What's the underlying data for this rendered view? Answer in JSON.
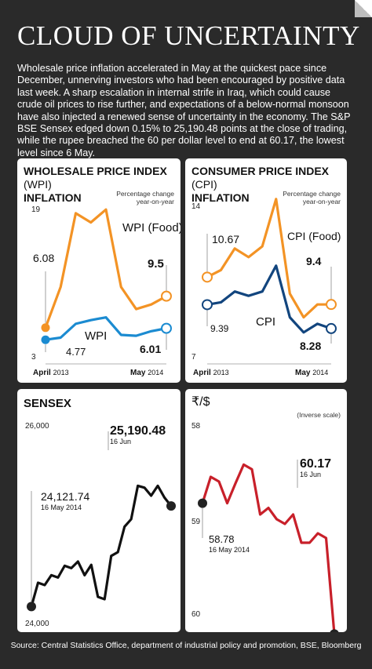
{
  "page": {
    "title": "CLOUD OF UNCERTAINTY",
    "intro": "Wholesale price inflation accelerated in May at the quickest pace since December, unnerving investors who had been encouraged by positive data last week. A sharp escalation in internal strife in Iraq, which could cause crude oil prices to rise further, and expectations of a below-normal monsoon have also injected a renewed sense of uncertainty in the economy. The S&P BSE Sensex edged down 0.15% to 25,190.48 points at the close of trading, while the rupee breached the 60 per dollar level to end at 60.17, the lowest level since 6 May.",
    "source": "Source: Central Statistics Office, department of industrial policy and promotion, BSE, Bloomberg"
  },
  "colors": {
    "background": "#2a2a2a",
    "panel": "#ffffff",
    "orange": "#f39325",
    "blue": "#1b8bd1",
    "navy": "#12457e",
    "black": "#111111",
    "red": "#c8202a"
  },
  "chart_data": [
    {
      "id": "wpi",
      "type": "line",
      "title_bold": "WHOLESALE PRICE INDEX",
      "title_thin": "(WPI)",
      "title_line2": "INFLATION",
      "subtitle": "Percentage change year-on-year",
      "ylim": [
        3,
        19
      ],
      "yticks": [
        "19",
        "3"
      ],
      "x_start_month": "April",
      "x_start_year": "2013",
      "x_end_month": "May",
      "x_end_year": "2014",
      "series": [
        {
          "name": "WPI (Food)",
          "color": "#f39325",
          "start_label": "6.08",
          "end_label": "9.5",
          "values": [
            6.08,
            10.5,
            18.5,
            17.5,
            18.9,
            10.5,
            8.1,
            8.6,
            9.5
          ]
        },
        {
          "name": "WPI",
          "color": "#1b8bd1",
          "start_label": "4.77",
          "end_label": "6.01",
          "values": [
            4.77,
            5.0,
            6.5,
            6.9,
            7.2,
            5.3,
            5.2,
            5.7,
            6.01
          ]
        }
      ]
    },
    {
      "id": "cpi",
      "type": "line",
      "title_bold": "CONSUMER PRICE INDEX",
      "title_thin": "(CPI)",
      "title_line2": "INFLATION",
      "subtitle": "Percentage change year-on-year",
      "ylim": [
        7,
        14
      ],
      "yticks": [
        "14",
        "7"
      ],
      "x_start_month": "April",
      "x_start_year": "2013",
      "x_end_month": "May",
      "x_end_year": "2014",
      "series": [
        {
          "name": "CPI (Food)",
          "color": "#f39325",
          "start_label": "10.67",
          "end_label": "9.4",
          "values": [
            10.67,
            11.0,
            12.0,
            11.6,
            12.1,
            14.3,
            9.9,
            8.8,
            9.4,
            9.4
          ]
        },
        {
          "name": "CPI",
          "color": "#12457e",
          "start_label": "9.39",
          "end_label": "8.28",
          "values": [
            9.39,
            9.5,
            10.0,
            9.8,
            10.0,
            11.2,
            8.8,
            8.1,
            8.5,
            8.28
          ]
        }
      ]
    },
    {
      "id": "sensex",
      "type": "line",
      "title_bold": "SENSEX",
      "ylim": [
        24000,
        26000
      ],
      "yticks": [
        "26,000",
        "24,000"
      ],
      "start_label": "24,121.74",
      "start_date": "16 May 2014",
      "end_label": "25,190.48",
      "end_date": "16 Jun",
      "series": [
        {
          "name": "",
          "color": "#111111",
          "values": [
            24121.74,
            24375,
            24350,
            24455,
            24430,
            24555,
            24530,
            24600,
            24455,
            24565,
            24225,
            24200,
            24660,
            24700,
            24970,
            25050,
            25405,
            25385,
            25300,
            25405,
            25280,
            25190.48
          ]
        }
      ]
    },
    {
      "id": "rupee",
      "type": "line",
      "title_bold": "₹/$",
      "subtitle": "(Inverse scale)",
      "ylim": [
        58,
        60
      ],
      "inverse": true,
      "yticks": [
        "58",
        "59",
        "60"
      ],
      "start_label": "58.78",
      "start_date": "16 May 2014",
      "end_label": "60.17",
      "end_date": "16 Jun",
      "series": [
        {
          "name": "",
          "color": "#c8202a",
          "values": [
            58.78,
            58.5,
            58.55,
            58.78,
            58.57,
            58.37,
            58.42,
            58.9,
            58.83,
            58.95,
            59.0,
            58.9,
            59.2,
            59.2,
            59.1,
            59.15,
            60.17
          ]
        }
      ]
    }
  ]
}
